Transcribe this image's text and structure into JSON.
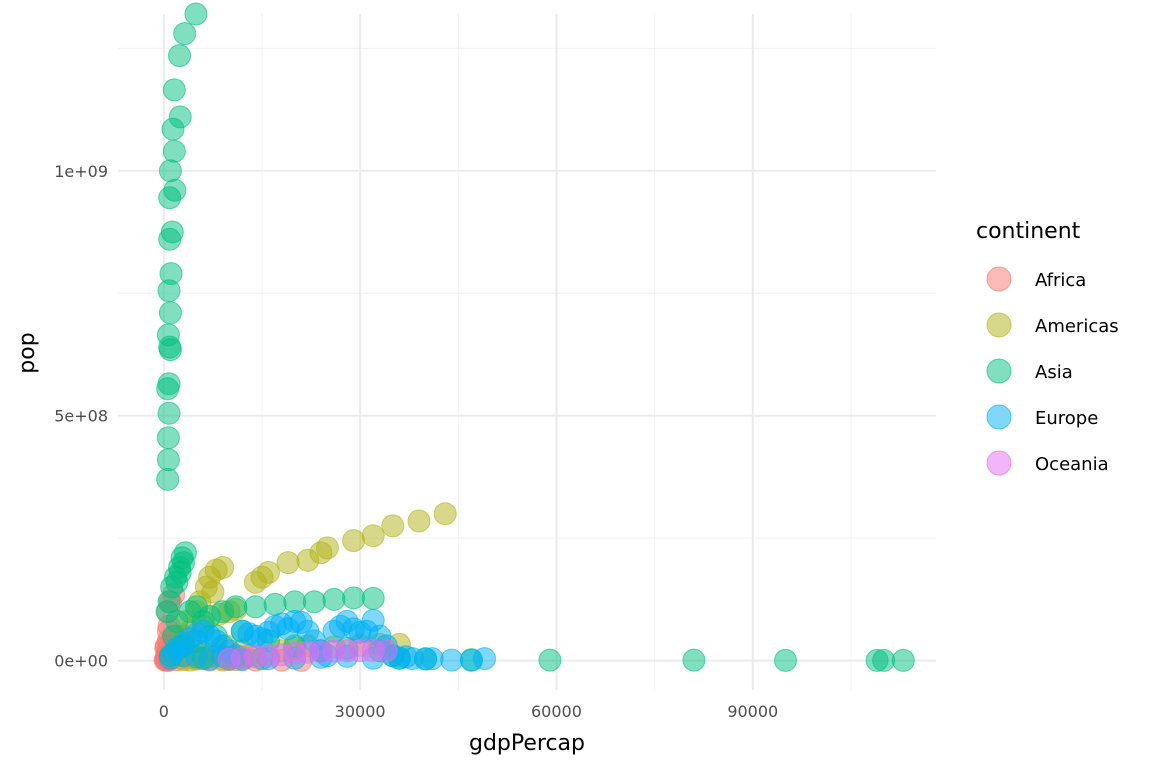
{
  "chart_data": {
    "type": "scatter",
    "xlabel": "gdpPercap",
    "ylabel": "pop",
    "xlim": [
      -7000,
      118000
    ],
    "ylim": [
      -60000000,
      1320000000
    ],
    "x_ticks": [
      0,
      30000,
      60000,
      90000
    ],
    "x_tick_labels": [
      "0",
      "30000",
      "60000",
      "90000"
    ],
    "y_ticks": [
      0,
      500000000,
      1000000000
    ],
    "y_tick_labels": [
      "0e+00",
      "5e+08",
      "1e+09"
    ],
    "grid": true,
    "legend": {
      "title": "continent",
      "placement": "right",
      "entries": [
        "Africa",
        "Americas",
        "Asia",
        "Europe",
        "Oceania"
      ]
    },
    "series": [
      {
        "name": "Africa",
        "color": "#F8766D",
        "points": [
          [
            300,
            2000000
          ],
          [
            400,
            5000000
          ],
          [
            500,
            10000000
          ],
          [
            600,
            20000000
          ],
          [
            700,
            40000000
          ],
          [
            800,
            70000000
          ],
          [
            900,
            3000000
          ],
          [
            1000,
            8000000
          ],
          [
            1200,
            15000000
          ],
          [
            1500,
            30000000
          ],
          [
            1800,
            50000000
          ],
          [
            2000,
            2000000
          ],
          [
            2500,
            12000000
          ],
          [
            3000,
            6000000
          ],
          [
            3500,
            20000000
          ],
          [
            4000,
            9000000
          ],
          [
            5000,
            3000000
          ],
          [
            6000,
            15000000
          ],
          [
            7000,
            1000000
          ],
          [
            8000,
            10000000
          ],
          [
            9000,
            4000000
          ],
          [
            10000,
            2000000
          ],
          [
            12000,
            8000000
          ],
          [
            14000,
            1000000
          ],
          [
            18000,
            1000000
          ],
          [
            21000,
            500000
          ],
          [
            600,
            100000000
          ],
          [
            1000,
            120000000
          ],
          [
            1500,
            135000000
          ],
          [
            700,
            60000000
          ],
          [
            400,
            30000000
          ],
          [
            300,
            25000000
          ],
          [
            200,
            1000000
          ],
          [
            500,
            500000
          ],
          [
            800,
            800000
          ]
        ]
      },
      {
        "name": "Americas",
        "color": "#B2B217",
        "points": [
          [
            2000,
            10000000
          ],
          [
            2500,
            30000000
          ],
          [
            3000,
            50000000
          ],
          [
            3500,
            80000000
          ],
          [
            4000,
            60000000
          ],
          [
            4500,
            20000000
          ],
          [
            5000,
            100000000
          ],
          [
            5500,
            120000000
          ],
          [
            6000,
            70000000
          ],
          [
            6500,
            150000000
          ],
          [
            7000,
            170000000
          ],
          [
            8000,
            185000000
          ],
          [
            9000,
            190000000
          ],
          [
            10000,
            100000000
          ],
          [
            11000,
            105000000
          ],
          [
            12000,
            20000000
          ],
          [
            13000,
            10000000
          ],
          [
            9500,
            30000000
          ],
          [
            7500,
            140000000
          ],
          [
            8500,
            95000000
          ],
          [
            14000,
            160000000
          ],
          [
            15000,
            170000000
          ],
          [
            16000,
            180000000
          ],
          [
            19000,
            200000000
          ],
          [
            22000,
            205000000
          ],
          [
            24000,
            220000000
          ],
          [
            25000,
            230000000
          ],
          [
            29000,
            245000000
          ],
          [
            32000,
            255000000
          ],
          [
            35000,
            275000000
          ],
          [
            39000,
            285000000
          ],
          [
            43000,
            300000000
          ],
          [
            18000,
            20000000
          ],
          [
            20000,
            25000000
          ],
          [
            22000,
            30000000
          ],
          [
            26000,
            28000000
          ],
          [
            30000,
            31000000
          ],
          [
            33000,
            33000000
          ],
          [
            36000,
            33000000
          ],
          [
            5000,
            5000000
          ],
          [
            10000,
            3000000
          ],
          [
            7000,
            8000000
          ],
          [
            4000,
            1000000
          ],
          [
            3000,
            2000000
          ],
          [
            6000,
            4000000
          ],
          [
            12000,
            4000000
          ],
          [
            11000,
            2000000
          ],
          [
            9000,
            1000000
          ]
        ]
      },
      {
        "name": "Asia",
        "color": "#00BF7D",
        "points": [
          [
            600,
            370000000
          ],
          [
            700,
            410000000
          ],
          [
            700,
            455000000
          ],
          [
            800,
            505000000
          ],
          [
            600,
            555000000
          ],
          [
            800,
            565000000
          ],
          [
            1000,
            635000000
          ],
          [
            900,
            640000000
          ],
          [
            700,
            665000000
          ],
          [
            1000,
            710000000
          ],
          [
            800,
            755000000
          ],
          [
            1100,
            790000000
          ],
          [
            900,
            860000000
          ],
          [
            1300,
            875000000
          ],
          [
            900,
            945000000
          ],
          [
            1700,
            960000000
          ],
          [
            1000,
            1000000000
          ],
          [
            1600,
            1040000000
          ],
          [
            1400,
            1085000000
          ],
          [
            2500,
            1110000000
          ],
          [
            1600,
            1165000000
          ],
          [
            2400,
            1235000000
          ],
          [
            3200,
            1280000000
          ],
          [
            4900,
            1320000000
          ],
          [
            1000,
            10000000
          ],
          [
            1500,
            50000000
          ],
          [
            2000,
            80000000
          ],
          [
            500,
            100000000
          ],
          [
            800,
            120000000
          ],
          [
            1200,
            150000000
          ],
          [
            1800,
            170000000
          ],
          [
            2400,
            190000000
          ],
          [
            2800,
            210000000
          ],
          [
            3300,
            220000000
          ],
          [
            3000,
            200000000
          ],
          [
            2500,
            180000000
          ],
          [
            2000,
            160000000
          ],
          [
            4000,
            100000000
          ],
          [
            5000,
            110000000
          ],
          [
            6000,
            80000000
          ],
          [
            7000,
            90000000
          ],
          [
            9000,
            100000000
          ],
          [
            11000,
            110000000
          ],
          [
            14000,
            110000000
          ],
          [
            17000,
            115000000
          ],
          [
            20000,
            120000000
          ],
          [
            23000,
            120000000
          ],
          [
            26000,
            125000000
          ],
          [
            29000,
            128000000
          ],
          [
            32000,
            127000000
          ],
          [
            3000,
            30000000
          ],
          [
            5000,
            40000000
          ],
          [
            8000,
            50000000
          ],
          [
            12000,
            60000000
          ],
          [
            16000,
            40000000
          ],
          [
            20000,
            30000000
          ],
          [
            24000,
            20000000
          ],
          [
            28000,
            25000000
          ],
          [
            33000,
            20000000
          ],
          [
            35000,
            10000000
          ],
          [
            36000,
            5000000
          ],
          [
            40000,
            4000000
          ],
          [
            47000,
            2000000
          ],
          [
            59000,
            1000000
          ],
          [
            81000,
            1000000
          ],
          [
            95000,
            500000
          ],
          [
            109000,
            500000
          ],
          [
            110000,
            500000
          ],
          [
            113000,
            500000
          ],
          [
            6000,
            5000000
          ],
          [
            10000,
            3000000
          ],
          [
            15000,
            4000000
          ]
        ]
      },
      {
        "name": "Europe",
        "color": "#00B0F6",
        "points": [
          [
            1000,
            5000000
          ],
          [
            1500,
            15000000
          ],
          [
            2000,
            25000000
          ],
          [
            3000,
            35000000
          ],
          [
            4000,
            45000000
          ],
          [
            5000,
            55000000
          ],
          [
            6000,
            60000000
          ],
          [
            7000,
            50000000
          ],
          [
            8000,
            40000000
          ],
          [
            9000,
            30000000
          ],
          [
            10000,
            20000000
          ],
          [
            11000,
            10000000
          ],
          [
            12000,
            60000000
          ],
          [
            13000,
            55000000
          ],
          [
            14000,
            50000000
          ],
          [
            15000,
            45000000
          ],
          [
            16000,
            58000000
          ],
          [
            17000,
            70000000
          ],
          [
            18000,
            75000000
          ],
          [
            19000,
            65000000
          ],
          [
            20000,
            80000000
          ],
          [
            21000,
            78000000
          ],
          [
            22000,
            60000000
          ],
          [
            23000,
            40000000
          ],
          [
            24000,
            20000000
          ],
          [
            25000,
            10000000
          ],
          [
            26000,
            60000000
          ],
          [
            27000,
            70000000
          ],
          [
            28000,
            80000000
          ],
          [
            29000,
            65000000
          ],
          [
            30000,
            58000000
          ],
          [
            31000,
            60000000
          ],
          [
            32000,
            82000000
          ],
          [
            33000,
            50000000
          ],
          [
            34000,
            30000000
          ],
          [
            35000,
            10000000
          ],
          [
            36000,
            5000000
          ],
          [
            37000,
            8000000
          ],
          [
            38000,
            4000000
          ],
          [
            40000,
            3000000
          ],
          [
            41000,
            4000000
          ],
          [
            44000,
            1000000
          ],
          [
            47000,
            500000
          ],
          [
            49000,
            4000000
          ],
          [
            3000,
            10000000
          ],
          [
            5000,
            8000000
          ],
          [
            7000,
            3000000
          ],
          [
            9000,
            9000000
          ],
          [
            12000,
            2000000
          ],
          [
            16000,
            4000000
          ],
          [
            20000,
            5000000
          ],
          [
            24000,
            7000000
          ],
          [
            28000,
            9000000
          ],
          [
            32000,
            5000000
          ]
        ]
      },
      {
        "name": "Oceania",
        "color": "#E76BF3",
        "points": [
          [
            10000,
            3000000
          ],
          [
            12000,
            5000000
          ],
          [
            14000,
            8000000
          ],
          [
            16000,
            10000000
          ],
          [
            18000,
            12000000
          ],
          [
            20000,
            15000000
          ],
          [
            22000,
            17000000
          ],
          [
            24000,
            18000000
          ],
          [
            26000,
            19000000
          ],
          [
            28000,
            20000000
          ],
          [
            30000,
            20000000
          ],
          [
            32000,
            21000000
          ],
          [
            34000,
            20000000
          ]
        ]
      }
    ]
  }
}
